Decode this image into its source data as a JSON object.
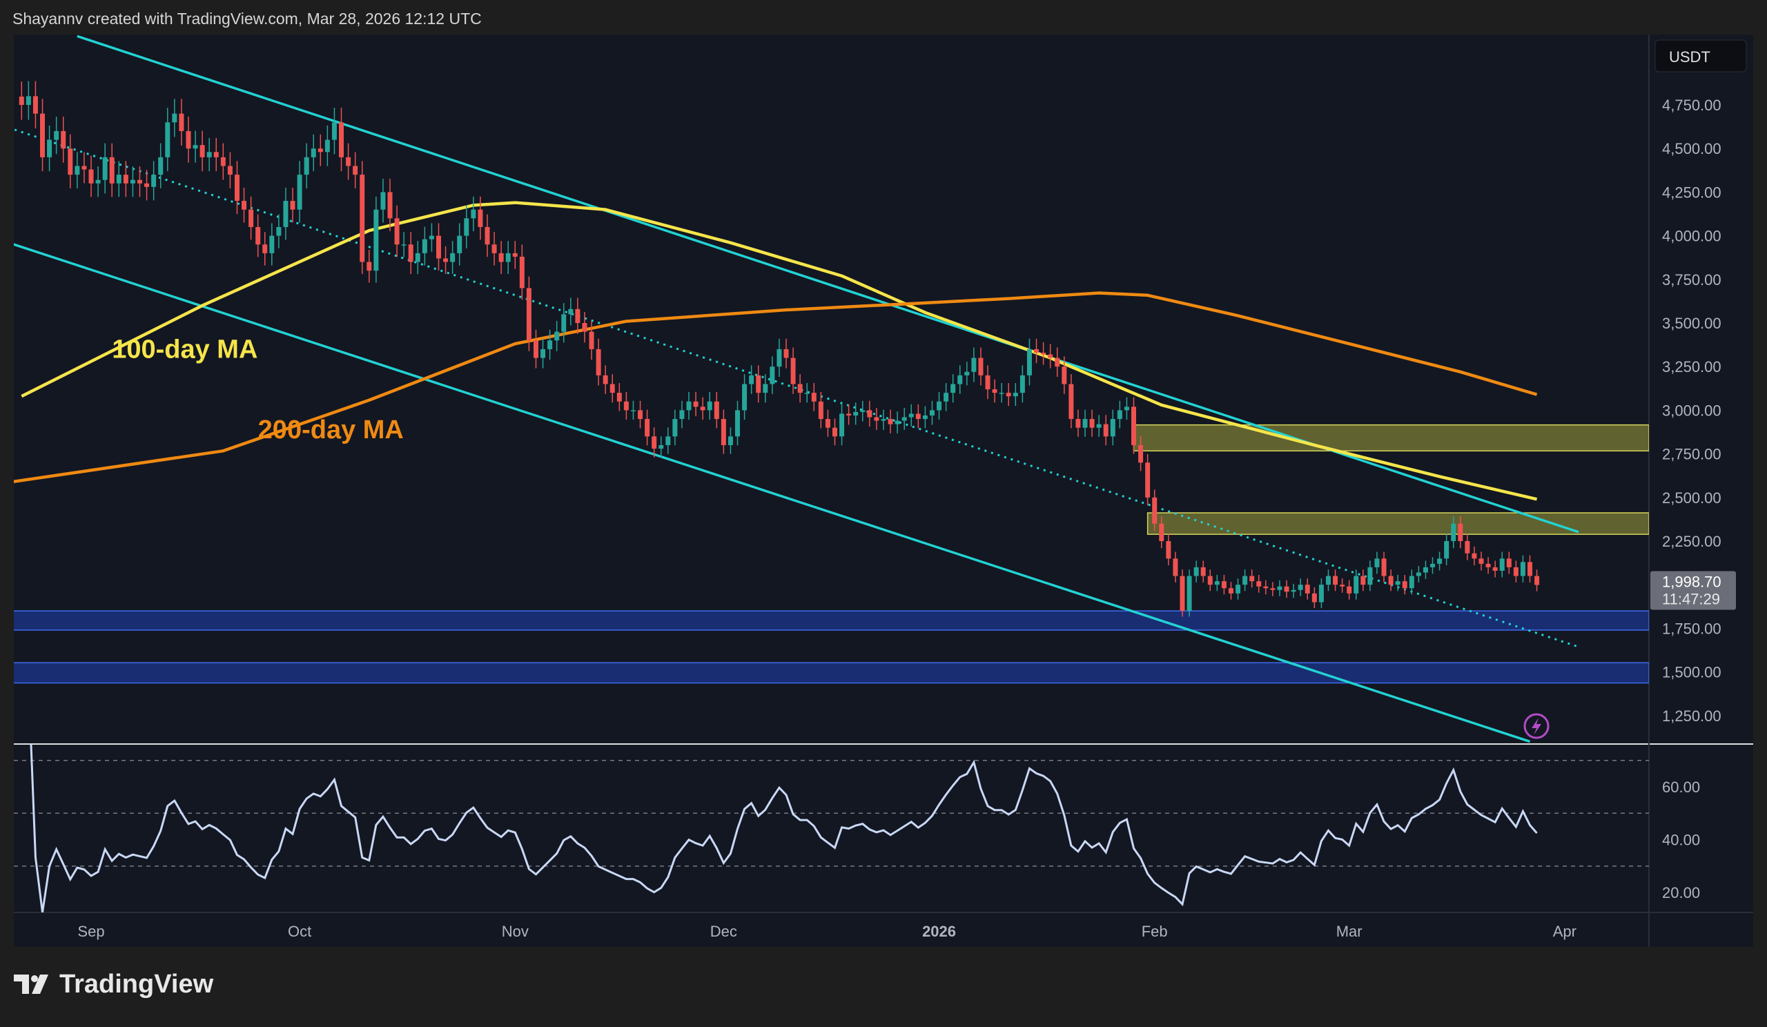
{
  "header": {
    "credit": "Shayannv created with TradingView.com, Mar 28, 2026 12:12 UTC"
  },
  "branding": {
    "logo_text": "TradingView"
  },
  "colors": {
    "bg": "#131722",
    "up": "#26a69a",
    "down": "#ef5350",
    "ma100": "#f5e54a",
    "ma200": "#f08a12",
    "channel": "#22d3d3",
    "supply_zone": "#8a8a3a",
    "demand_zone": "#1e3a8a",
    "rsi": "#c9d8f5"
  },
  "chart_data": [
    {
      "type": "candlestick",
      "currency_label": "USDT",
      "y_ticks": [
        "4,750.00",
        "4,500.00",
        "4,250.00",
        "4,000.00",
        "3,750.00",
        "3,500.00",
        "3,250.00",
        "3,000.00",
        "2,750.00",
        "2,500.00",
        "2,250.00",
        "1,750.00",
        "1,500.00",
        "1,250.00"
      ],
      "y_tick_values": [
        4750,
        4500,
        4250,
        4000,
        3750,
        3500,
        3250,
        3000,
        2750,
        2500,
        2250,
        1750,
        1500,
        1250
      ],
      "x_ticks": [
        {
          "label": "Sep",
          "date": "2025-09-01"
        },
        {
          "label": "Oct",
          "date": "2025-10-01"
        },
        {
          "label": "Nov",
          "date": "2025-11-01"
        },
        {
          "label": "Dec",
          "date": "2025-12-01"
        },
        {
          "label": "2026",
          "date": "2026-01-01"
        },
        {
          "label": "Feb",
          "date": "2026-02-01"
        },
        {
          "label": "Mar",
          "date": "2026-03-01"
        },
        {
          "label": "Apr",
          "date": "2026-04-01"
        }
      ],
      "last_price": {
        "value": "1,998.70",
        "countdown": "11:47:29"
      },
      "closes_by_month": [
        {
          "first_date": "2025-08-22",
          "closes": [
            4750,
            4800,
            4700,
            4450,
            4550,
            4600,
            4500,
            4350,
            4400,
            4380
          ]
        },
        {
          "first_date": "2025-09-01",
          "closes": [
            4300,
            4320,
            4450,
            4300,
            4350,
            4300,
            4320,
            4300,
            4280,
            4350,
            4450,
            4650,
            4700,
            4600,
            4500,
            4520,
            4450,
            4480,
            4450,
            4400,
            4350,
            4200,
            4150,
            4050,
            3950,
            3900,
            4000,
            4050,
            4200,
            4150
          ]
        },
        {
          "first_date": "2025-10-01",
          "closes": [
            4350,
            4450,
            4500,
            4480,
            4550,
            4650,
            4450,
            4400,
            4350,
            3850,
            3800,
            4150,
            4250,
            4100,
            3950,
            3950,
            3850,
            3900,
            3980,
            4000,
            3870,
            3850,
            3900,
            4000,
            4100,
            4150,
            4050,
            3950,
            3900,
            3850,
            3900
          ]
        },
        {
          "first_date": "2025-11-01",
          "closes": [
            3880,
            3700,
            3400,
            3300,
            3350,
            3400,
            3450,
            3550,
            3580,
            3500,
            3450,
            3350,
            3200,
            3150,
            3100,
            3050,
            3000,
            3000,
            2950,
            2850,
            2780,
            2800,
            2850,
            2950,
            3000,
            3050,
            3020,
            3000,
            3050,
            2950
          ]
        },
        {
          "first_date": "2025-12-01",
          "closes": [
            2800,
            2850,
            3000,
            3150,
            3200,
            3100,
            3150,
            3250,
            3350,
            3300,
            3150,
            3100,
            3100,
            3050,
            2950,
            2900,
            2850,
            2980,
            2970,
            2990,
            3000,
            2960,
            2940,
            2950,
            2920,
            2940,
            2960,
            2980,
            2950,
            2970,
            3000
          ]
        },
        {
          "first_date": "2026-01-01",
          "closes": [
            3050,
            3100,
            3150,
            3200,
            3220,
            3300,
            3200,
            3120,
            3100,
            3100,
            3080,
            3100,
            3200,
            3350,
            3330,
            3320,
            3300,
            3250,
            3150,
            2950,
            2900,
            2950,
            2900,
            2920,
            2850,
            2950,
            3000,
            3020,
            2800,
            2700,
            2500
          ]
        },
        {
          "first_date": "2026-02-01",
          "closes": [
            2350,
            2250,
            2150,
            2050,
            1850,
            2050,
            2100,
            2050,
            2000,
            2020,
            1980,
            1950,
            2000,
            2050,
            2020,
            1990,
            1980,
            1970,
            1990,
            1960,
            1970,
            2000,
            1950,
            1900,
            2000,
            2050,
            2000,
            1990
          ]
        },
        {
          "first_date": "2026-03-01",
          "closes": [
            1950,
            2050,
            2000,
            2100,
            2150,
            2050,
            2000,
            2020,
            1980,
            2050,
            2070,
            2100,
            2120,
            2150,
            2250,
            2350,
            2250,
            2180,
            2150,
            2120,
            2100,
            2080,
            2150,
            2100,
            2050,
            2130,
            2050,
            1998.7
          ]
        }
      ],
      "moving_averages": [
        {
          "name": "100-day MA",
          "points": [
            [
              "2025-08-22",
              3080
            ],
            [
              "2025-09-17",
              3600
            ],
            [
              "2025-10-11",
              4030
            ],
            [
              "2025-10-26",
              4175
            ],
            [
              "2025-11-01",
              4190
            ],
            [
              "2025-11-14",
              4150
            ],
            [
              "2025-12-02",
              3960
            ],
            [
              "2025-12-18",
              3770
            ],
            [
              "2025-12-30",
              3560
            ],
            [
              "2026-01-17",
              3300
            ],
            [
              "2026-02-02",
              3030
            ],
            [
              "2026-02-24",
              2800
            ],
            [
              "2026-03-14",
              2620
            ],
            [
              "2026-03-28",
              2490
            ]
          ]
        },
        {
          "name": "200-day MA",
          "points": [
            [
              "2025-08-20",
              2586
            ],
            [
              "2025-09-20",
              2767
            ],
            [
              "2025-10-11",
              3058
            ],
            [
              "2025-11-01",
              3381
            ],
            [
              "2025-11-17",
              3510
            ],
            [
              "2025-12-10",
              3575
            ],
            [
              "2025-12-26",
              3607
            ],
            [
              "2026-01-11",
              3640
            ],
            [
              "2026-01-24",
              3672
            ],
            [
              "2026-01-31",
              3659
            ],
            [
              "2026-02-13",
              3542
            ],
            [
              "2026-03-01",
              3381
            ],
            [
              "2026-03-17",
              3220
            ],
            [
              "2026-03-28",
              3090
            ]
          ]
        }
      ],
      "trendlines": [
        {
          "style": "solid",
          "from": [
            "2025-08-30",
            5144
          ],
          "to": [
            "2026-04-03",
            2302
          ]
        },
        {
          "style": "solid",
          "from": [
            "2025-08-20",
            3962
          ],
          "to": [
            "2026-03-27",
            1101
          ]
        },
        {
          "style": "dotted",
          "from": [
            "2025-08-21",
            4608
          ],
          "to": [
            "2026-04-03",
            1644
          ]
        }
      ],
      "zones": [
        {
          "kind": "supply",
          "from_date": "2026-01-29",
          "low": 2767,
          "high": 2916
        },
        {
          "kind": "supply",
          "from_date": "2026-01-31",
          "low": 2289,
          "high": 2412
        },
        {
          "kind": "demand",
          "from_date": "2025-08-20",
          "low": 1740,
          "high": 1850
        },
        {
          "kind": "demand",
          "from_date": "2025-08-20",
          "low": 1437,
          "high": 1553
        }
      ],
      "annotations": [
        {
          "text": "100-day MA",
          "date": "2025-09-04",
          "price": 3300
        },
        {
          "text": "200-day MA",
          "date": "2025-09-25",
          "price": 2840
        }
      ]
    },
    {
      "type": "line",
      "indicator": "RSI",
      "y_ticks": [
        "60.00",
        "40.00",
        "20.00"
      ],
      "y_tick_values": [
        60,
        40,
        20
      ],
      "levels": [
        70,
        50,
        30
      ],
      "period": 14
    }
  ]
}
